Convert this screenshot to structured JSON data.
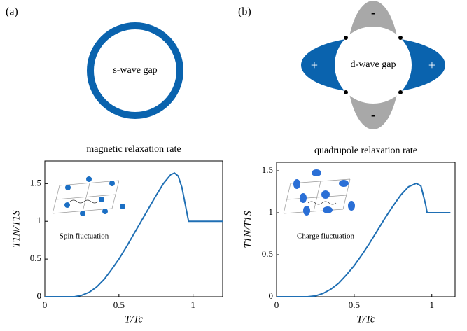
{
  "diagrams": {
    "a": {
      "panel_label": "(a)",
      "gap_label": "s-wave gap"
    },
    "b": {
      "panel_label": "(b)",
      "gap_label": "d-wave gap",
      "signs": [
        "-",
        "+",
        "+",
        "-"
      ]
    }
  },
  "chart_data": [
    {
      "type": "line",
      "title": "magnetic relaxation rate",
      "xlabel": "T/Tc",
      "ylabel": "T1N/T1S",
      "annotation": "Spin fluctuation",
      "xlim": [
        0,
        1.2
      ],
      "ylim": [
        0,
        1.8
      ],
      "xticks": [
        0,
        0.5,
        1
      ],
      "yticks": [
        0,
        0.5,
        1,
        1.5
      ],
      "series": [
        {
          "color": "#1f6fb4",
          "x": [
            0,
            0.05,
            0.1,
            0.15,
            0.2,
            0.25,
            0.3,
            0.35,
            0.4,
            0.45,
            0.5,
            0.55,
            0.6,
            0.65,
            0.7,
            0.75,
            0.8,
            0.85,
            0.875,
            0.9,
            0.925,
            0.95,
            0.97,
            1.0,
            1.2
          ],
          "values": [
            0,
            0,
            0,
            0,
            0,
            0.02,
            0.06,
            0.13,
            0.23,
            0.36,
            0.5,
            0.66,
            0.83,
            1.0,
            1.17,
            1.34,
            1.5,
            1.62,
            1.64,
            1.6,
            1.45,
            1.2,
            1.0,
            1,
            1
          ]
        }
      ]
    },
    {
      "type": "line",
      "title": "quadrupole relaxation rate",
      "xlabel": "T/Tc",
      "ylabel": "T1N/T1S",
      "annotation": "Charge fluctuation",
      "xlim": [
        0,
        1.15
      ],
      "ylim": [
        0,
        1.6
      ],
      "xticks": [
        0,
        0.5,
        1
      ],
      "yticks": [
        0,
        0.5,
        1,
        1.5
      ],
      "series": [
        {
          "color": "#1f6fb4",
          "x": [
            0,
            0.05,
            0.1,
            0.15,
            0.2,
            0.25,
            0.3,
            0.35,
            0.4,
            0.45,
            0.5,
            0.55,
            0.6,
            0.65,
            0.7,
            0.75,
            0.8,
            0.85,
            0.9,
            0.93,
            0.96,
            0.97,
            1.0,
            1.12
          ],
          "values": [
            0,
            0,
            0,
            0,
            0,
            0.01,
            0.04,
            0.09,
            0.16,
            0.26,
            0.37,
            0.5,
            0.64,
            0.79,
            0.94,
            1.08,
            1.21,
            1.31,
            1.35,
            1.32,
            1.1,
            1.0,
            1,
            1
          ]
        }
      ]
    }
  ]
}
